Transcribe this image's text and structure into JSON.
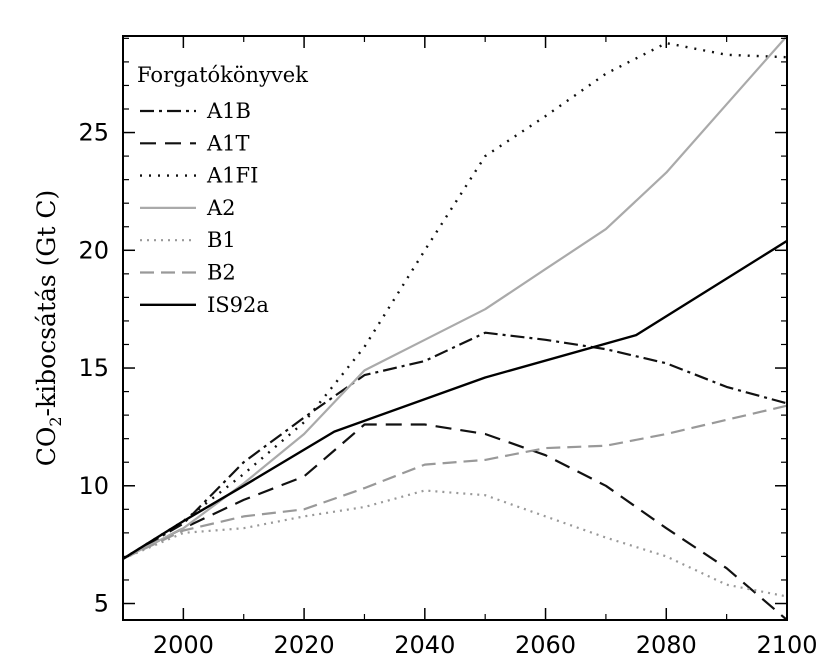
{
  "chart_data": {
    "type": "line",
    "title": "",
    "xlabel": "",
    "ylabel_main": "CO",
    "ylabel_sub": "2",
    "ylabel_rest": "-kibocsátás (Gt C)",
    "xlim": [
      1990,
      2100
    ],
    "ylim": [
      4.3,
      29.1
    ],
    "xticks": [
      2000,
      2020,
      2040,
      2060,
      2080,
      2100
    ],
    "yticks": [
      5,
      10,
      15,
      20,
      25
    ],
    "grid": false,
    "legend_position": "top-left",
    "legend_title": "Forgatókönyvek",
    "series": [
      {
        "name": "A1B",
        "color": "#111111",
        "dash": "14,5,3,5",
        "width": 2.2,
        "x": [
          1990,
          2000,
          2010,
          2020,
          2030,
          2040,
          2050,
          2060,
          2070,
          2080,
          2090,
          2100
        ],
        "y": [
          6.9,
          8.4,
          11.0,
          12.9,
          14.7,
          15.3,
          16.5,
          16.2,
          15.8,
          15.2,
          14.2,
          13.5
        ]
      },
      {
        "name": "A1T",
        "color": "#111111",
        "dash": "16,9",
        "width": 2.2,
        "x": [
          1990,
          2000,
          2010,
          2020,
          2030,
          2040,
          2050,
          2060,
          2070,
          2080,
          2090,
          2100
        ],
        "y": [
          6.9,
          8.2,
          9.4,
          10.4,
          12.6,
          12.6,
          12.2,
          11.3,
          10.0,
          8.2,
          6.5,
          4.3
        ]
      },
      {
        "name": "A1FI",
        "color": "#111111",
        "dash": "2,7",
        "width": 2.4,
        "x": [
          1990,
          2000,
          2010,
          2020,
          2030,
          2040,
          2050,
          2060,
          2070,
          2080,
          2090,
          2100
        ],
        "y": [
          6.9,
          8.5,
          10.5,
          12.7,
          15.9,
          20.0,
          24.0,
          25.7,
          27.5,
          28.8,
          28.3,
          28.2
        ]
      },
      {
        "name": "A2",
        "color": "#aaaaaa",
        "dash": "",
        "width": 2.2,
        "x": [
          1990,
          2000,
          2010,
          2020,
          2030,
          2040,
          2050,
          2060,
          2070,
          2080,
          2090,
          2100
        ],
        "y": [
          6.9,
          8.2,
          10.1,
          12.2,
          14.9,
          16.2,
          17.5,
          19.2,
          20.9,
          23.3,
          26.2,
          29.1
        ]
      },
      {
        "name": "B1",
        "color": "#999999",
        "dash": "2,5",
        "width": 2.2,
        "x": [
          1990,
          2000,
          2010,
          2020,
          2030,
          2040,
          2050,
          2060,
          2070,
          2080,
          2090,
          2100
        ],
        "y": [
          6.9,
          8.0,
          8.2,
          8.7,
          9.1,
          9.8,
          9.6,
          8.7,
          7.8,
          7.0,
          5.8,
          5.3
        ]
      },
      {
        "name": "B2",
        "color": "#999999",
        "dash": "14,7",
        "width": 2.2,
        "x": [
          1990,
          2000,
          2010,
          2020,
          2030,
          2040,
          2050,
          2060,
          2070,
          2080,
          2090,
          2100
        ],
        "y": [
          6.9,
          8.1,
          8.7,
          9.0,
          9.9,
          10.9,
          11.1,
          11.6,
          11.7,
          12.2,
          12.8,
          13.4
        ]
      },
      {
        "name": "IS92a",
        "color": "#000000",
        "dash": "",
        "width": 2.4,
        "x": [
          1990,
          2000,
          2010,
          2025,
          2050,
          2075,
          2100
        ],
        "y": [
          6.9,
          8.5,
          10.0,
          12.3,
          14.6,
          16.4,
          20.4
        ]
      }
    ]
  }
}
